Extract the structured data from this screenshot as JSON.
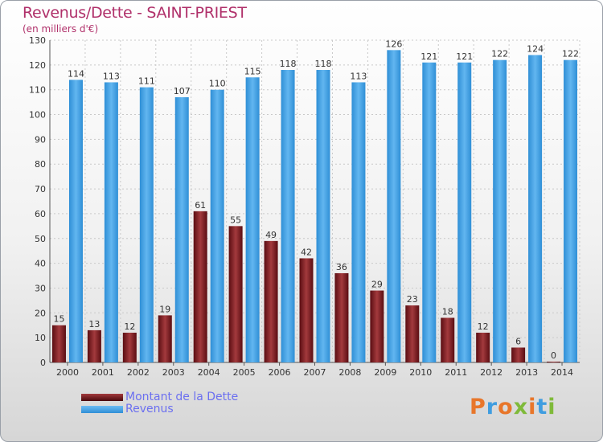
{
  "header": {
    "title": "Revenus/Dette - SAINT-PRIEST",
    "subtitle": "(en milliers d'€)"
  },
  "chart_data": {
    "type": "bar",
    "title": "Revenus/Dette - SAINT-PRIEST",
    "ylabel": "(en milliers d'€)",
    "xlabel": "",
    "ylim": [
      0,
      130
    ],
    "yticks": [
      0,
      10,
      20,
      30,
      40,
      50,
      60,
      70,
      80,
      90,
      100,
      110,
      120,
      130
    ],
    "grid": true,
    "legend_position": "bottom-left",
    "categories": [
      "2000",
      "2001",
      "2002",
      "2003",
      "2004",
      "2005",
      "2006",
      "2007",
      "2008",
      "2009",
      "2010",
      "2011",
      "2012",
      "2013",
      "2014"
    ],
    "series": [
      {
        "name": "Montant de la Dette",
        "color": "#7a1a1e",
        "values": [
          15,
          13,
          12,
          19,
          61,
          55,
          49,
          42,
          36,
          29,
          23,
          18,
          12,
          6,
          0
        ]
      },
      {
        "name": "Revenus",
        "color": "#3f9de0",
        "values": [
          114,
          113,
          111,
          107,
          110,
          115,
          118,
          118,
          113,
          126,
          121,
          121,
          122,
          124,
          122
        ]
      }
    ]
  },
  "legend": {
    "items": [
      {
        "label": "Montant de la Dette",
        "color": "#7a1a1e"
      },
      {
        "label": "Revenus",
        "color": "#3f9de0"
      }
    ]
  },
  "logo": {
    "text": "Proxiti"
  }
}
